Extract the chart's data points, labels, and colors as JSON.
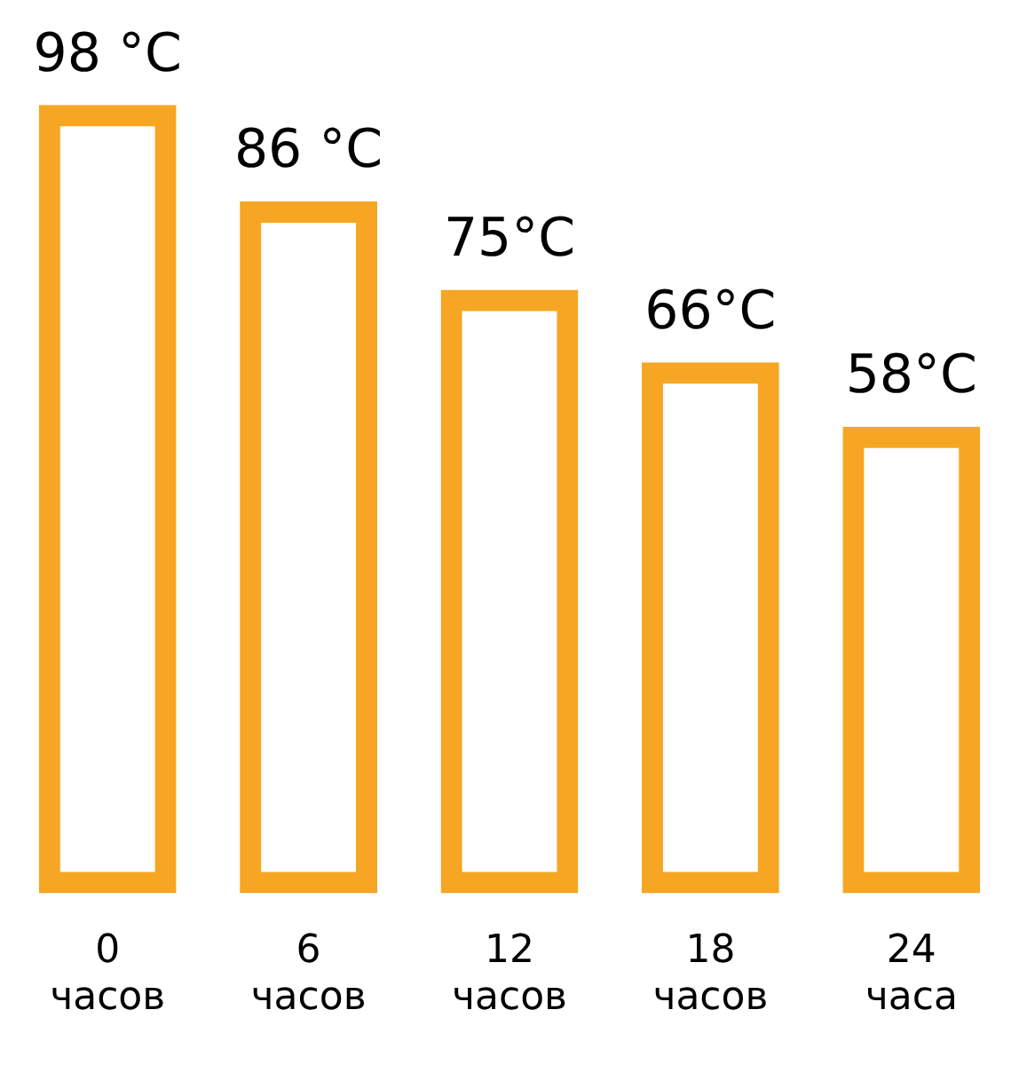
{
  "chart_data": {
    "type": "bar",
    "categories": [
      "0 часов",
      "6 часов",
      "12 часов",
      "18 часов",
      "24 часа"
    ],
    "values": [
      98,
      86,
      75,
      66,
      58
    ],
    "value_labels": [
      "98 °C",
      "86 °C",
      "75°C",
      "66°C",
      "58°C"
    ],
    "color": "#f6a623",
    "grid": false,
    "legend": false,
    "tick_labels": "x"
  }
}
